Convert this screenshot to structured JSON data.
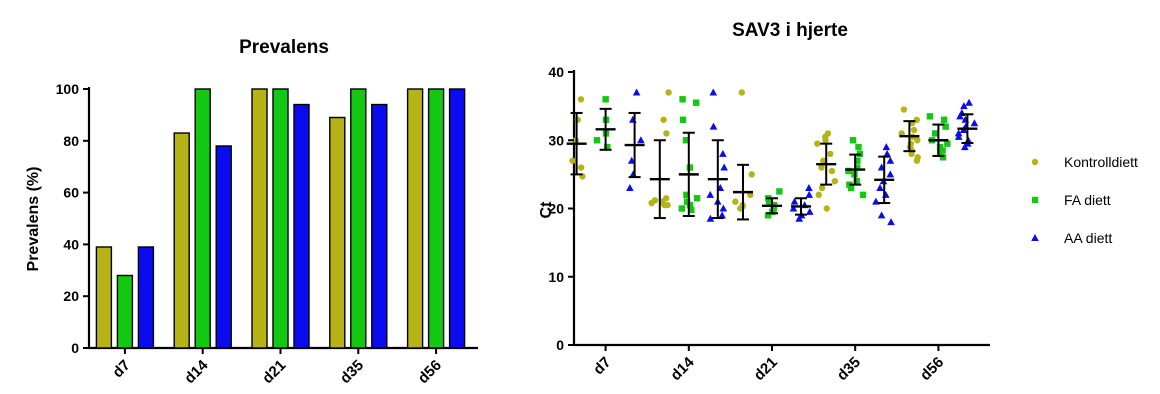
{
  "colors": {
    "kontroll": "#B5B315",
    "fa": "#13C813",
    "aa": "#0B0BF0",
    "errorbar": "#000000"
  },
  "chart_data": [
    {
      "type": "bar",
      "title": "Prevalens",
      "xlabel": "",
      "ylabel": "Prevalens (%)",
      "ylim": [
        0,
        100
      ],
      "yticks": [
        0,
        20,
        40,
        60,
        80,
        100
      ],
      "categories": [
        "d7",
        "d14",
        "d21",
        "d35",
        "d56"
      ],
      "series": [
        {
          "color_key": "kontroll",
          "values": [
            39,
            83,
            100,
            89,
            100
          ]
        },
        {
          "color_key": "fa",
          "values": [
            28,
            100,
            100,
            100,
            100
          ]
        },
        {
          "color_key": "aa",
          "values": [
            39,
            78,
            94,
            94,
            100
          ]
        }
      ],
      "grid": false
    },
    {
      "type": "scatter",
      "title": "SAV3 i hjerte",
      "xlabel": "",
      "ylabel": "Ct",
      "ylim": [
        0,
        40
      ],
      "yticks": [
        0,
        10,
        20,
        30,
        40
      ],
      "categories": [
        "d7",
        "d14",
        "d21",
        "d35",
        "d56"
      ],
      "legend_position": "right",
      "grid": false,
      "series": [
        {
          "name": "Kontrolldiett",
          "color_key": "kontroll",
          "marker": "circle",
          "mean": [
            29.5,
            24.3,
            22.4,
            26.5,
            30.6
          ],
          "sd": [
            4.5,
            5.7,
            4.0,
            3.0,
            2.2
          ],
          "points": [
            [
              36,
              33,
              30,
              27,
              24.7,
              26
            ],
            [
              37,
              33,
              31,
              21.5,
              20.8,
              21,
              20.5,
              21.2,
              20.5
            ],
            [
              37,
              25,
              22,
              20.5,
              20,
              20.3,
              21
            ],
            [
              31,
              30.5,
              30,
              29.5,
              28,
              27,
              26,
              25.5,
              24,
              23,
              22,
              20
            ],
            [
              34.5,
              33,
              32.5,
              31.5,
              31,
              30.5,
              30,
              29.5,
              29,
              28.5,
              28,
              27.5,
              27
            ]
          ]
        },
        {
          "name": "FA diett",
          "color_key": "fa",
          "marker": "square",
          "mean": [
            31.6,
            25.0,
            20.4,
            25.7,
            30.0
          ],
          "sd": [
            3.0,
            6.1,
            1.1,
            2.2,
            2.3
          ],
          "points": [
            [
              36,
              33,
              31,
              30,
              29
            ],
            [
              36,
              35.5,
              33,
              30,
              26,
              22,
              21,
              20.5,
              20,
              19.8,
              21.5
            ],
            [
              22.5,
              21.5,
              21,
              20.5,
              20,
              19.5,
              19
            ],
            [
              30,
              29,
              28,
              27,
              26,
              25.5,
              25,
              24,
              23.5,
              23,
              22
            ],
            [
              33.5,
              33,
              32,
              31,
              30,
              29.5,
              29,
              28.5,
              28,
              27.5
            ]
          ]
        },
        {
          "name": "AA diett",
          "color_key": "aa",
          "marker": "triangle",
          "mean": [
            29.3,
            24.3,
            20.3,
            24.2,
            31.7
          ],
          "sd": [
            4.7,
            5.7,
            1.2,
            3.4,
            2.1
          ],
          "points": [
            [
              37,
              33,
              30,
              27,
              25,
              23
            ],
            [
              37,
              32,
              28,
              26,
              23,
              22,
              21,
              20,
              19,
              18.5
            ],
            [
              23,
              22,
              21,
              20.5,
              20,
              19.5,
              19,
              18.5
            ],
            [
              29,
              28,
              27,
              26,
              25,
              24,
              23,
              22,
              21,
              19,
              18
            ],
            [
              35.5,
              35,
              34,
              33.5,
              33,
              32.5,
              32,
              31.5,
              31,
              30.5,
              30,
              29.5,
              29
            ]
          ]
        }
      ]
    }
  ]
}
